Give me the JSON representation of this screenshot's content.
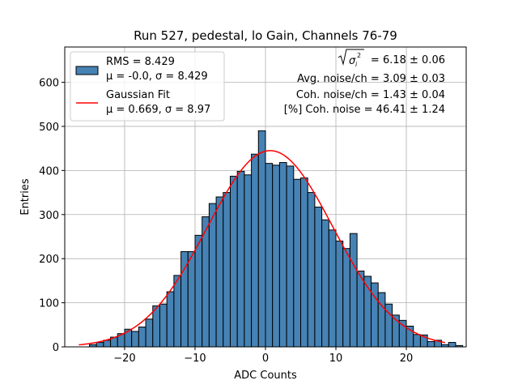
{
  "chart_data": {
    "type": "bar",
    "title": "Run 527, pedestal, lo Gain, Channels 76-79",
    "xlabel": "ADC Counts",
    "ylabel": "Entries",
    "xlim": [
      -28.5,
      28.5
    ],
    "ylim": [
      0,
      680
    ],
    "xticks": [
      -20,
      -10,
      0,
      10,
      20
    ],
    "xtick_labels": [
      "−20",
      "−10",
      "0",
      "10",
      "20"
    ],
    "yticks": [
      0,
      100,
      200,
      300,
      400,
      500,
      600
    ],
    "ytick_labels": [
      "0",
      "100",
      "200",
      "300",
      "400",
      "500",
      "600"
    ],
    "grid": true,
    "bin_width": 1,
    "bin_edges_start": -25,
    "counts": [
      5,
      10,
      15,
      22,
      30,
      40,
      35,
      45,
      63,
      93,
      97,
      125,
      162,
      216,
      216,
      253,
      295,
      325,
      340,
      350,
      387,
      398,
      390,
      437,
      490,
      416,
      412,
      418,
      410,
      380,
      383,
      350,
      317,
      288,
      265,
      240,
      223,
      257,
      172,
      160,
      145,
      123,
      97,
      72,
      60,
      47,
      28,
      27,
      12,
      15,
      5,
      10,
      3
    ],
    "bar_color": "#4682b4",
    "fit": {
      "name": "Gaussian Fit",
      "mu": 0.669,
      "sigma": 8.97,
      "amplitude": 445,
      "x_range": [
        -26.5,
        25.5
      ],
      "color": "#ff0000"
    },
    "legend": {
      "position": "top-left",
      "entries": [
        {
          "line1": "RMS = 8.429",
          "line2": "μ = -0.0, σ = 8.429",
          "kind": "bar"
        },
        {
          "line1": "Gaussian Fit",
          "line2": "μ = 0.669, σ = 8.97",
          "kind": "line"
        }
      ]
    },
    "annotations": {
      "sqrt_sigma_value": " = 6.18 ± 0.06",
      "sqrt_sigma_symbol": "σ",
      "sqrt_sigma_sub": "i",
      "sqrt_sigma_sup": "2",
      "lines": [
        "Avg. noise/ch = 3.09 ± 0.03",
        "Coh. noise/ch = 1.43 ± 0.04",
        "[%] Coh. noise = 46.41 ± 1.24"
      ]
    }
  }
}
